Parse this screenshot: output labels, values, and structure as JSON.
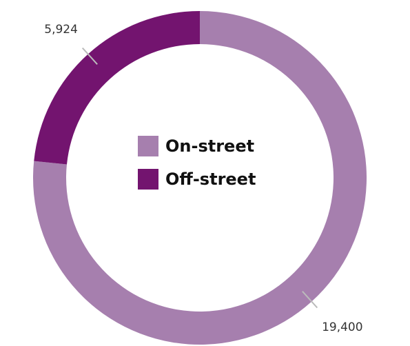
{
  "chart_data": {
    "type": "donut",
    "categories": [
      "On-street",
      "Off-street"
    ],
    "values": [
      19400,
      5924
    ],
    "value_labels": [
      "19,400",
      "5,924"
    ],
    "colors": [
      "#a67fae",
      "#73146f"
    ]
  }
}
